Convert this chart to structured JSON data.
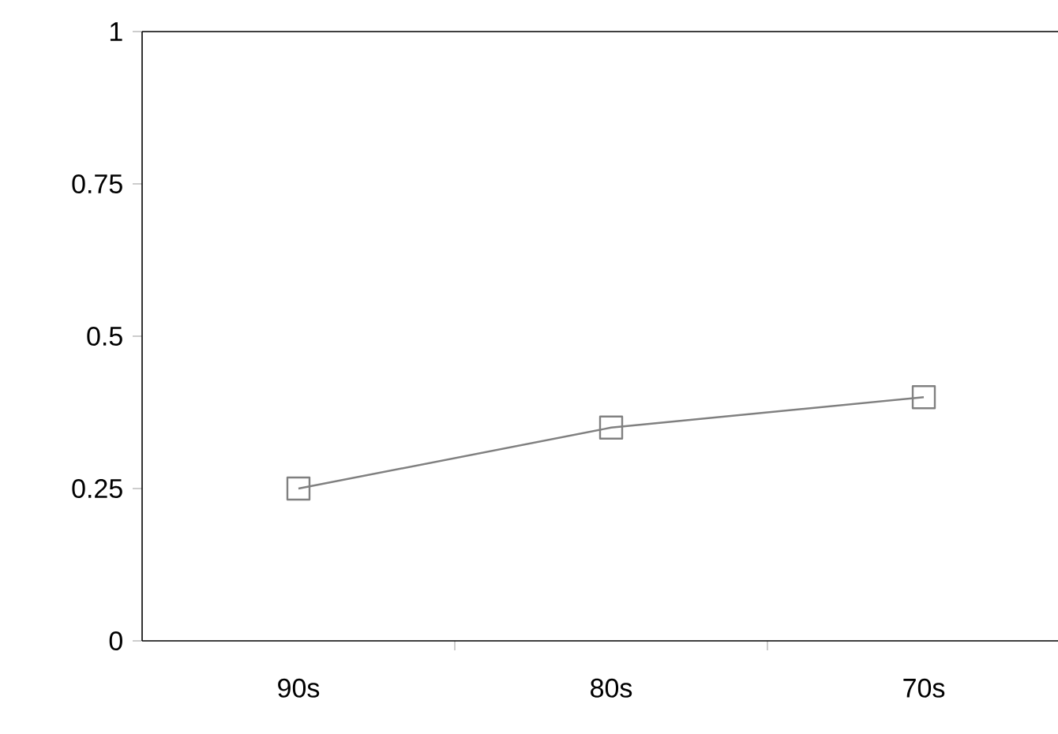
{
  "chart_data": {
    "type": "line",
    "categories": [
      "90s",
      "80s",
      "70s"
    ],
    "series": [
      {
        "color": "#808080",
        "values": [
          0.25,
          0.35,
          0.4
        ]
      }
    ],
    "ylim": [
      0,
      1
    ],
    "yticks": [
      0,
      0.25,
      0.5,
      0.75,
      1
    ],
    "marker": "square",
    "line_style": "solid"
  }
}
